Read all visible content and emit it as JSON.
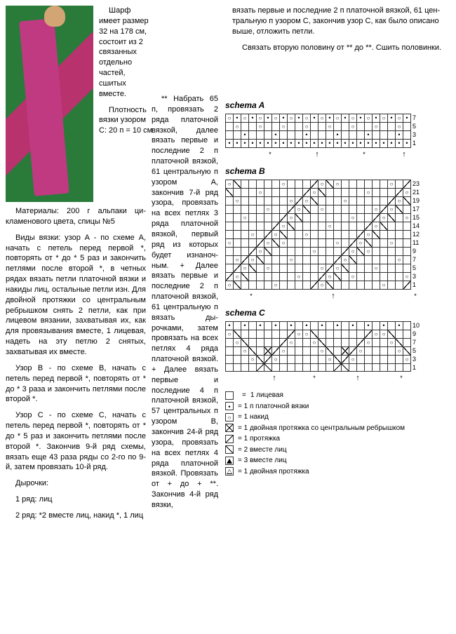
{
  "top": {
    "p1": "Шарф имеет размер 32 на 178 см, состоит из 2 связан­ных отдельно частей, сшитых вместе.",
    "p2": "Плотность вязки узором С: 20 п = 10 см",
    "r1": "вязать первые и последние 2 п платочной вязкой, 61 цен­тральную п узором С, закон­чив узор С, как было описано выше, отложить петли.",
    "r2": "Связать вторую половину от ** до **. Сшить половинки."
  },
  "left": {
    "mat": "Материалы: 200 г альпаки ци­кламенового цвета, спицы №5",
    "vA": "Виды вязки: узор А - по схе­ме А, начать с петель перед первой *, повторять от * до * 5 раз и закончить петлями по­сле второй *, в четных рядах вязать петли платочной вязки и накиды лиц, остальные пет­ли изн. Для двойной протяжки со центральным ребрышком снять 2 петли, как при лицевом вязании, захватывая их, как для провязывания вместе, 1 лицевая, надеть на эту петлю 2 снятых, захватывая их вместе.",
    "vB": "Узор В - по схеме В, начать с петель перед первой *, повто­рять от * до * 3 раза и закон­чить петлями после второй *.",
    "vC": "Узор С - по схеме С, начать с петель перед первой *, повто­рять от * до * 5 раз и закончить петлями после второй *. Закон­чив 9-й ряд схемы, вязать еще 43 раза ряды со 2-го по 9-й, за­тем провязать 10-й ряд.",
    "dyr_h": "Дырочки:",
    "dyr1": "1 ряд: лиц",
    "dyr2": "2 ряд: *2 вместе лиц, накид *, 1 лиц"
  },
  "mid": {
    "m1": "** Набрать 65 п, провязать 2 ряда платочной вязкой, далее вязать первые и последние 2 п платочной вязкой, 61 цен­тральную п узо­ром А, закончив 7-й ряд узора, провязать на всех петлях 3 ряда платочной вязкой, первый ряд из которых будет изнаноч­ным. + Далее вязать первые и последние 2 п платоч­ной вязкой, 61 центральную п вязать ды­рочками, затем провязать на всех петлях 4 ряда платочной вязкой. + Далее вязать первые и последние 4 п платочной вязкой, 57 цен­тральных п узо­ром В, закончив 24-й ряд узора, провязать на всех петлях 4 ряда платочной вязкой. Про­вязать от + до + **. Закончив 4-й ряд вязки,"
  },
  "schemas": {
    "a_label": "schema A",
    "b_label": "schema B",
    "c_label": "schema C",
    "a_rows": [
      "7",
      "5",
      "3",
      "1"
    ],
    "b_rows": [
      "23",
      "21",
      "19",
      "17",
      "15",
      "14",
      "12",
      "11",
      "9",
      "7",
      "5",
      "3",
      "1"
    ],
    "c_rows": [
      "10",
      "9",
      "7",
      "5",
      "3",
      "1"
    ]
  },
  "legend": {
    "l1": "1 лицевая",
    "l2": "= 1 п платочной вязки",
    "l3": "= 1 накид",
    "l4": "= 1 двойная протяжка со центральным ребрышком",
    "l5": "= 1 протяжка",
    "l6": "= 2 вместе лиц",
    "l7": "= 3 вместе лиц",
    "l8": "= 1 двойная протяжка"
  }
}
